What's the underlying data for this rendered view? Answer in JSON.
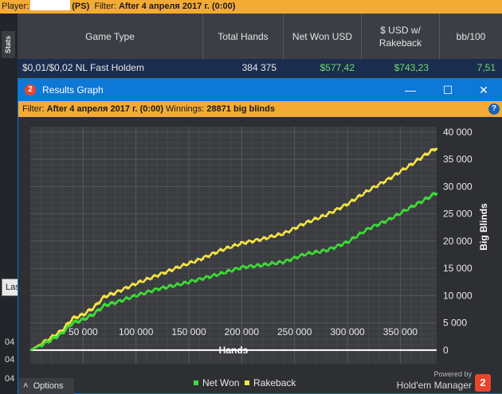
{
  "playerbar": {
    "player_label": "Player:",
    "site": "(PS)",
    "filter_label": "Filter:",
    "filter_value": "After 4 апреля 2017 г. (0:00)"
  },
  "stats_tab": "Stats",
  "left_fragments": {
    "las": "Las",
    "row1": "04",
    "row2": "04",
    "row3": "04"
  },
  "table": {
    "columns": [
      "Game Type",
      "Total Hands",
      "Net Won USD",
      "$ USD w/ Rakeback",
      "bb/100"
    ],
    "row": [
      "$0,01/$0,02 NL Fast Holdem",
      "384 375",
      "$577,42",
      "$743,23",
      "7,51"
    ]
  },
  "window": {
    "logo": "2",
    "title": "Results Graph",
    "minimize_glyph": "—",
    "maximize_glyph": "☐",
    "close_glyph": "✕",
    "help_glyph": "?"
  },
  "filterbar": {
    "filter_label": "Filter:",
    "filter_value": "After 4 апреля 2017 г. (0:00)",
    "winnings_label": "Winnings:",
    "winnings_value": "28871 big blinds"
  },
  "chart_data": {
    "type": "line",
    "xlabel": "Hands",
    "ylabel": "Big Blinds",
    "xlim": [
      0,
      384375
    ],
    "ylim": [
      -2500,
      41000
    ],
    "xticks": [
      50000,
      100000,
      150000,
      200000,
      250000,
      300000,
      350000
    ],
    "xtick_labels": [
      "50 000",
      "100 000",
      "150 000",
      "200 000",
      "250 000",
      "300 000",
      "350 000"
    ],
    "yticks": [
      0,
      5000,
      10000,
      15000,
      20000,
      25000,
      30000,
      35000,
      40000
    ],
    "ytick_labels": [
      "0",
      "5 000",
      "10 000",
      "15 000",
      "20 000",
      "25 000",
      "30 000",
      "35 000",
      "40 000"
    ],
    "legend_position": "bottom-center",
    "grid": true,
    "zero_line": true,
    "series": [
      {
        "name": "Net Won",
        "color": "#3ddc33",
        "points": [
          [
            0,
            0
          ],
          [
            10000,
            900
          ],
          [
            20000,
            1900
          ],
          [
            30000,
            3100
          ],
          [
            40000,
            5000
          ],
          [
            50000,
            5600
          ],
          [
            60000,
            6600
          ],
          [
            70000,
            8200
          ],
          [
            80000,
            8700
          ],
          [
            100000,
            10000
          ],
          [
            120000,
            11200
          ],
          [
            140000,
            12000
          ],
          [
            160000,
            13000
          ],
          [
            180000,
            14000
          ],
          [
            200000,
            15200
          ],
          [
            220000,
            15600
          ],
          [
            240000,
            16200
          ],
          [
            260000,
            17600
          ],
          [
            280000,
            18300
          ],
          [
            300000,
            19800
          ],
          [
            320000,
            22300
          ],
          [
            340000,
            24000
          ],
          [
            360000,
            26200
          ],
          [
            375000,
            27800
          ],
          [
            384375,
            28871
          ]
        ]
      },
      {
        "name": "Rakeback",
        "color": "#f4e443",
        "points": [
          [
            0,
            0
          ],
          [
            10000,
            1100
          ],
          [
            20000,
            2300
          ],
          [
            30000,
            3600
          ],
          [
            40000,
            5800
          ],
          [
            50000,
            6500
          ],
          [
            60000,
            7800
          ],
          [
            70000,
            9800
          ],
          [
            80000,
            10500
          ],
          [
            100000,
            12200
          ],
          [
            120000,
            13700
          ],
          [
            140000,
            15200
          ],
          [
            160000,
            16600
          ],
          [
            180000,
            18300
          ],
          [
            200000,
            19600
          ],
          [
            220000,
            20400
          ],
          [
            240000,
            21400
          ],
          [
            260000,
            23300
          ],
          [
            280000,
            24800
          ],
          [
            300000,
            26800
          ],
          [
            320000,
            29300
          ],
          [
            340000,
            31500
          ],
          [
            360000,
            34000
          ],
          [
            375000,
            36000
          ],
          [
            384375,
            37100
          ]
        ]
      }
    ]
  },
  "footer": {
    "options_label": "Options",
    "powered_by": "Powered by",
    "brand": "Hold'em Manager",
    "brand_logo": "2"
  }
}
